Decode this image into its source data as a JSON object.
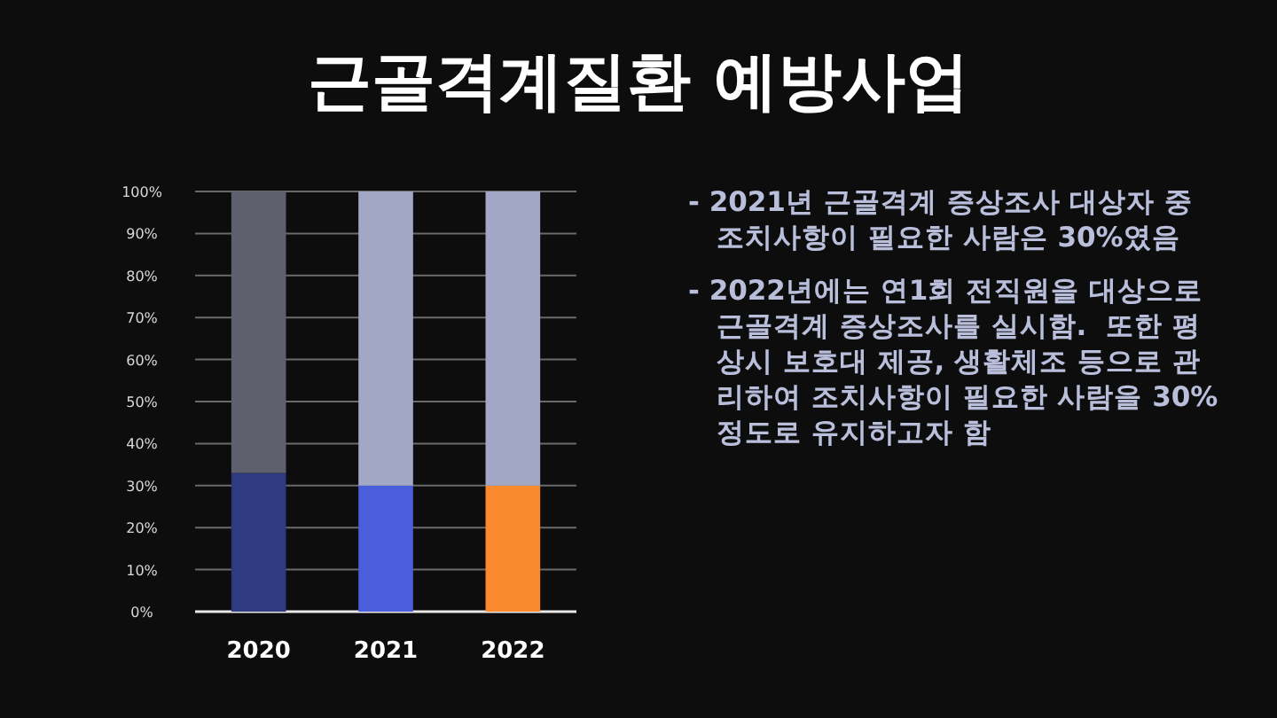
{
  "chart_data": {
    "type": "bar",
    "stacked": true,
    "title": "근골격계질환 예방사업",
    "categories": [
      "2020",
      "2021",
      "2022"
    ],
    "series": [
      {
        "colors": [
          "#2e3a82",
          "#4a5ddb",
          "#fb8a2e"
        ],
        "values": [
          33,
          30,
          30
        ]
      },
      {
        "colors": [
          "#5e616d",
          "#a1a7c4",
          "#a1a7c4"
        ],
        "values": [
          67,
          70,
          70
        ]
      }
    ],
    "ylim": [
      0,
      100
    ],
    "yticks": [
      {
        "value": 0,
        "label": "0%"
      },
      {
        "value": 10,
        "label": "10%"
      },
      {
        "value": 20,
        "label": "20%"
      },
      {
        "value": 30,
        "label": "30%"
      },
      {
        "value": 40,
        "label": "40%"
      },
      {
        "value": 50,
        "label": "50%"
      },
      {
        "value": 60,
        "label": "60%"
      },
      {
        "value": 70,
        "label": "70%"
      },
      {
        "value": 80,
        "label": "80%"
      },
      {
        "value": 90,
        "label": "90%"
      },
      {
        "value": 100,
        "label": "100%"
      }
    ],
    "grid": "y",
    "annotations": [
      "- 2021년 근골격계 증상조사 대상자 중 조치사항이 필요한 사람은 30%였음",
      "- 2022년에는 연1회 전직원을 대상으로 근골격계 증상조사를 실시함.  또한 평상시 보호대 제공, 생활체조 등으로 관리하여 조치사항이 필요한 사람을 30%정도로 유지하고자 함"
    ]
  }
}
